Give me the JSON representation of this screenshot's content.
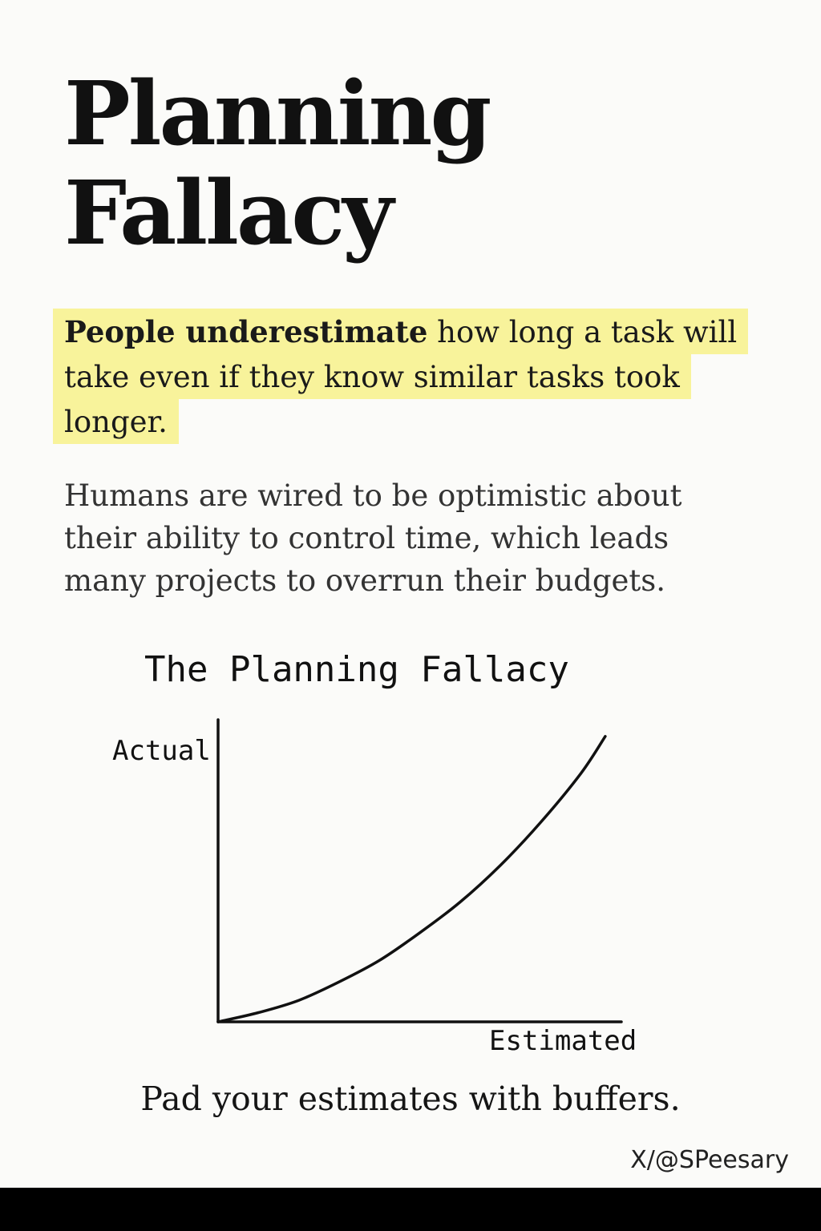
{
  "title": {
    "line1": "Planning",
    "line2": "Fallacy"
  },
  "highlight": {
    "line1_bold": "People underestimate",
    "line1_rest": " how long a task will",
    "line2": "take even if they know similar tasks took",
    "line3": "longer."
  },
  "body": {
    "line1": "Humans are wired to be optimistic about",
    "line2": "their ability to control time, which leads",
    "line3": "many projects to overrun their budgets."
  },
  "chart_data": {
    "type": "line",
    "title": "The Planning Fallacy",
    "xlabel": "Estimated",
    "ylabel": "Actual",
    "xlim": [
      0,
      1
    ],
    "ylim": [
      0,
      1
    ],
    "grid": false,
    "legend": "none",
    "x": [
      0,
      0.1,
      0.2,
      0.3,
      0.4,
      0.5,
      0.6,
      0.7,
      0.8,
      0.9,
      0.96
    ],
    "series": [
      {
        "values": [
          0,
          0.03,
          0.07,
          0.13,
          0.2,
          0.29,
          0.39,
          0.51,
          0.65,
          0.81,
          0.93
        ]
      }
    ]
  },
  "takeaway": "Pad your estimates with buffers.",
  "credit": "X/@SPeesary",
  "colors": {
    "background": "#fbfbf9",
    "highlight": "#f8f39b",
    "text": "#151515",
    "bottom_bar": "#000000"
  }
}
